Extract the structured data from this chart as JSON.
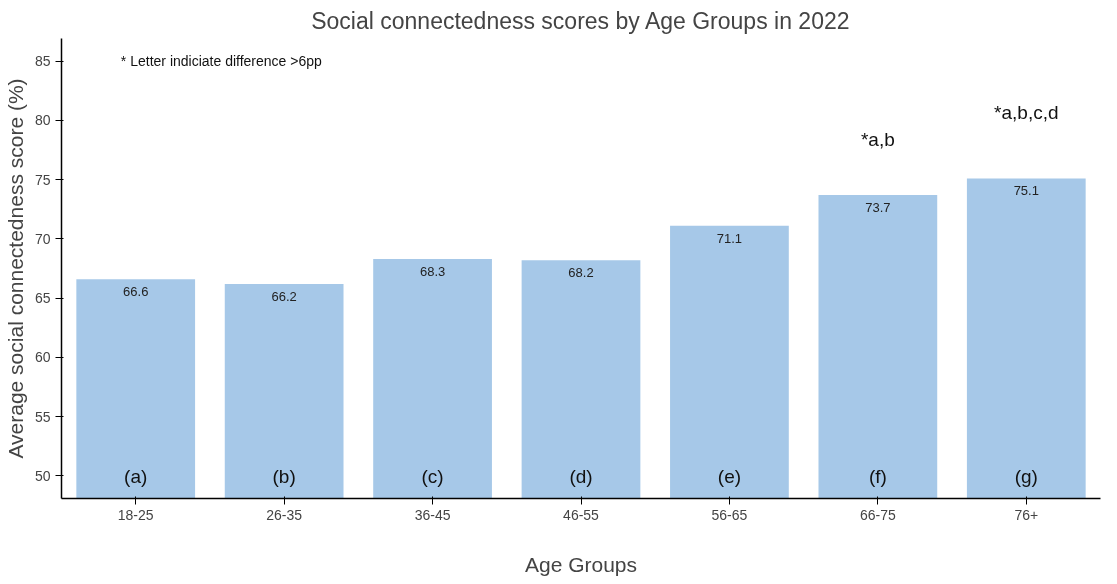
{
  "chart_data": {
    "type": "bar",
    "title": "Social connectedness scores by Age Groups in 2022",
    "xlabel": "Age Groups",
    "ylabel": "Average social connectedness score (%)",
    "categories": [
      "18-25",
      "26-35",
      "36-45",
      "46-55",
      "56-65",
      "66-75",
      "76+"
    ],
    "values": [
      66.6,
      66.2,
      68.3,
      68.2,
      71.1,
      73.7,
      75.1
    ],
    "color": "#a6c8e8",
    "ylim": [
      48.1,
      86.9
    ],
    "yticks": [
      50,
      55,
      60,
      65,
      70,
      75,
      80,
      85
    ],
    "grid": false,
    "data_labels": true,
    "annotations": [
      "* Letter indiciate difference >6pp",
      "(a)",
      "(b)",
      "(c)",
      "(d)",
      "(e)",
      "(f)",
      "(g)",
      "*a,b",
      "*a,b,c,d"
    ]
  }
}
